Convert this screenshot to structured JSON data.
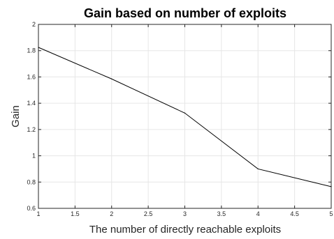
{
  "chart_data": {
    "type": "line",
    "title": "Gain based on number of exploits",
    "xlabel": "The number of directly reachable exploits",
    "ylabel": "Gain",
    "xlim": [
      1,
      5
    ],
    "ylim": [
      0.6,
      2
    ],
    "xticks": [
      "1",
      "1.5",
      "2",
      "2.5",
      "3",
      "3.5",
      "4",
      "4.5",
      "5"
    ],
    "yticks": [
      "0.6",
      "0.8",
      "1",
      "1.2",
      "1.4",
      "1.6",
      "1.8",
      "2"
    ],
    "grid": true,
    "series": [
      {
        "color": "#000000",
        "x": [
          1,
          2,
          3,
          4,
          5
        ],
        "y": [
          1.825,
          1.585,
          1.325,
          0.9,
          0.765
        ]
      }
    ]
  }
}
